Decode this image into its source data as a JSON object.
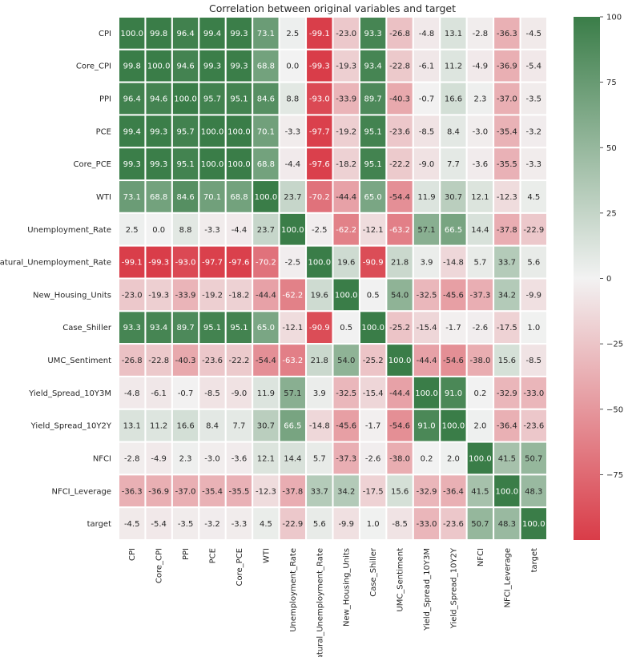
{
  "chart_data": {
    "type": "heatmap",
    "title": "Correlation between original variables and target",
    "variables": [
      "CPI",
      "Core_CPI",
      "PPI",
      "PCE",
      "Core_PCE",
      "WTI",
      "Unemployment_Rate",
      "Natural_Unemployment_Rate",
      "New_Housing_Units",
      "Case_Shiller",
      "UMC_Sentiment",
      "Yield_Spread_10Y3M",
      "Yield_Spread_10Y2Y",
      "NFCI",
      "NFCI_Leverage",
      "target"
    ],
    "values": [
      [
        100.0,
        99.8,
        96.4,
        99.4,
        99.3,
        73.1,
        2.5,
        -99.1,
        -23.0,
        93.3,
        -26.8,
        -4.8,
        13.1,
        -2.8,
        -36.3,
        -4.5
      ],
      [
        99.8,
        100.0,
        94.6,
        99.3,
        99.3,
        68.8,
        -0.0,
        -99.3,
        -19.3,
        93.4,
        -22.8,
        -6.1,
        11.2,
        -4.9,
        -36.9,
        -5.4
      ],
      [
        96.4,
        94.6,
        100.0,
        95.7,
        95.1,
        84.6,
        8.8,
        -93.0,
        -33.9,
        89.7,
        -40.3,
        -0.7,
        16.6,
        2.3,
        -37.0,
        -3.5
      ],
      [
        99.4,
        99.3,
        95.7,
        100.0,
        100.0,
        70.1,
        -3.3,
        -97.7,
        -19.2,
        95.1,
        -23.6,
        -8.5,
        8.4,
        -3.0,
        -35.4,
        -3.2
      ],
      [
        99.3,
        99.3,
        95.1,
        100.0,
        100.0,
        68.8,
        -4.4,
        -97.6,
        -18.2,
        95.1,
        -22.2,
        -9.0,
        7.7,
        -3.6,
        -35.5,
        -3.3
      ],
      [
        73.1,
        68.8,
        84.6,
        70.1,
        68.8,
        100.0,
        23.7,
        -70.2,
        -44.4,
        65.0,
        -54.4,
        11.9,
        30.7,
        12.1,
        -12.3,
        4.5
      ],
      [
        2.5,
        -0.0,
        8.8,
        -3.3,
        -4.4,
        23.7,
        100.0,
        -2.5,
        -62.2,
        -12.1,
        -63.2,
        57.1,
        66.5,
        14.4,
        -37.8,
        -22.9
      ],
      [
        -99.1,
        -99.3,
        -93.0,
        -97.7,
        -97.6,
        -70.2,
        -2.5,
        100.0,
        19.6,
        -90.9,
        21.8,
        3.9,
        -14.8,
        5.7,
        33.7,
        5.6
      ],
      [
        -23.0,
        -19.3,
        -33.9,
        -19.2,
        -18.2,
        -44.4,
        -62.2,
        19.6,
        100.0,
        0.5,
        54.0,
        -32.5,
        -45.6,
        -37.3,
        34.2,
        -9.9
      ],
      [
        93.3,
        93.4,
        89.7,
        95.1,
        95.1,
        65.0,
        -12.1,
        -90.9,
        0.5,
        100.0,
        -25.2,
        -15.4,
        -1.7,
        -2.6,
        -17.5,
        1.0
      ],
      [
        -26.8,
        -22.8,
        -40.3,
        -23.6,
        -22.2,
        -54.4,
        -63.2,
        21.8,
        54.0,
        -25.2,
        100.0,
        -44.4,
        -54.6,
        -38.0,
        15.6,
        -8.5
      ],
      [
        -4.8,
        -6.1,
        -0.7,
        -8.5,
        -9.0,
        11.9,
        57.1,
        3.9,
        -32.5,
        -15.4,
        -44.4,
        100.0,
        91.0,
        0.2,
        -32.9,
        -33.0
      ],
      [
        13.1,
        11.2,
        16.6,
        8.4,
        7.7,
        30.7,
        66.5,
        -14.8,
        -45.6,
        -1.7,
        -54.6,
        91.0,
        100.0,
        2.0,
        -36.4,
        -23.6
      ],
      [
        -2.8,
        -4.9,
        2.3,
        -3.0,
        -3.6,
        12.1,
        14.4,
        5.7,
        -37.3,
        -2.6,
        -38.0,
        0.2,
        2.0,
        100.0,
        41.5,
        50.7
      ],
      [
        -36.3,
        -36.9,
        -37.0,
        -35.4,
        -35.5,
        -12.3,
        -37.8,
        33.7,
        34.2,
        -17.5,
        15.6,
        -32.9,
        -36.4,
        41.5,
        100.0,
        48.3
      ],
      [
        -4.5,
        -5.4,
        -3.5,
        -3.2,
        -3.3,
        4.5,
        -22.9,
        5.6,
        -9.9,
        1.0,
        -8.5,
        -33.0,
        -23.6,
        50.7,
        48.3,
        100.0
      ]
    ],
    "colorbar": {
      "min": -100,
      "max": 100,
      "ticks": [
        100,
        75,
        50,
        25,
        0,
        -25,
        -50,
        -75
      ],
      "low_color": "#d93c48",
      "mid_color": "#f2f2f2",
      "high_color": "#3a7d48"
    }
  }
}
